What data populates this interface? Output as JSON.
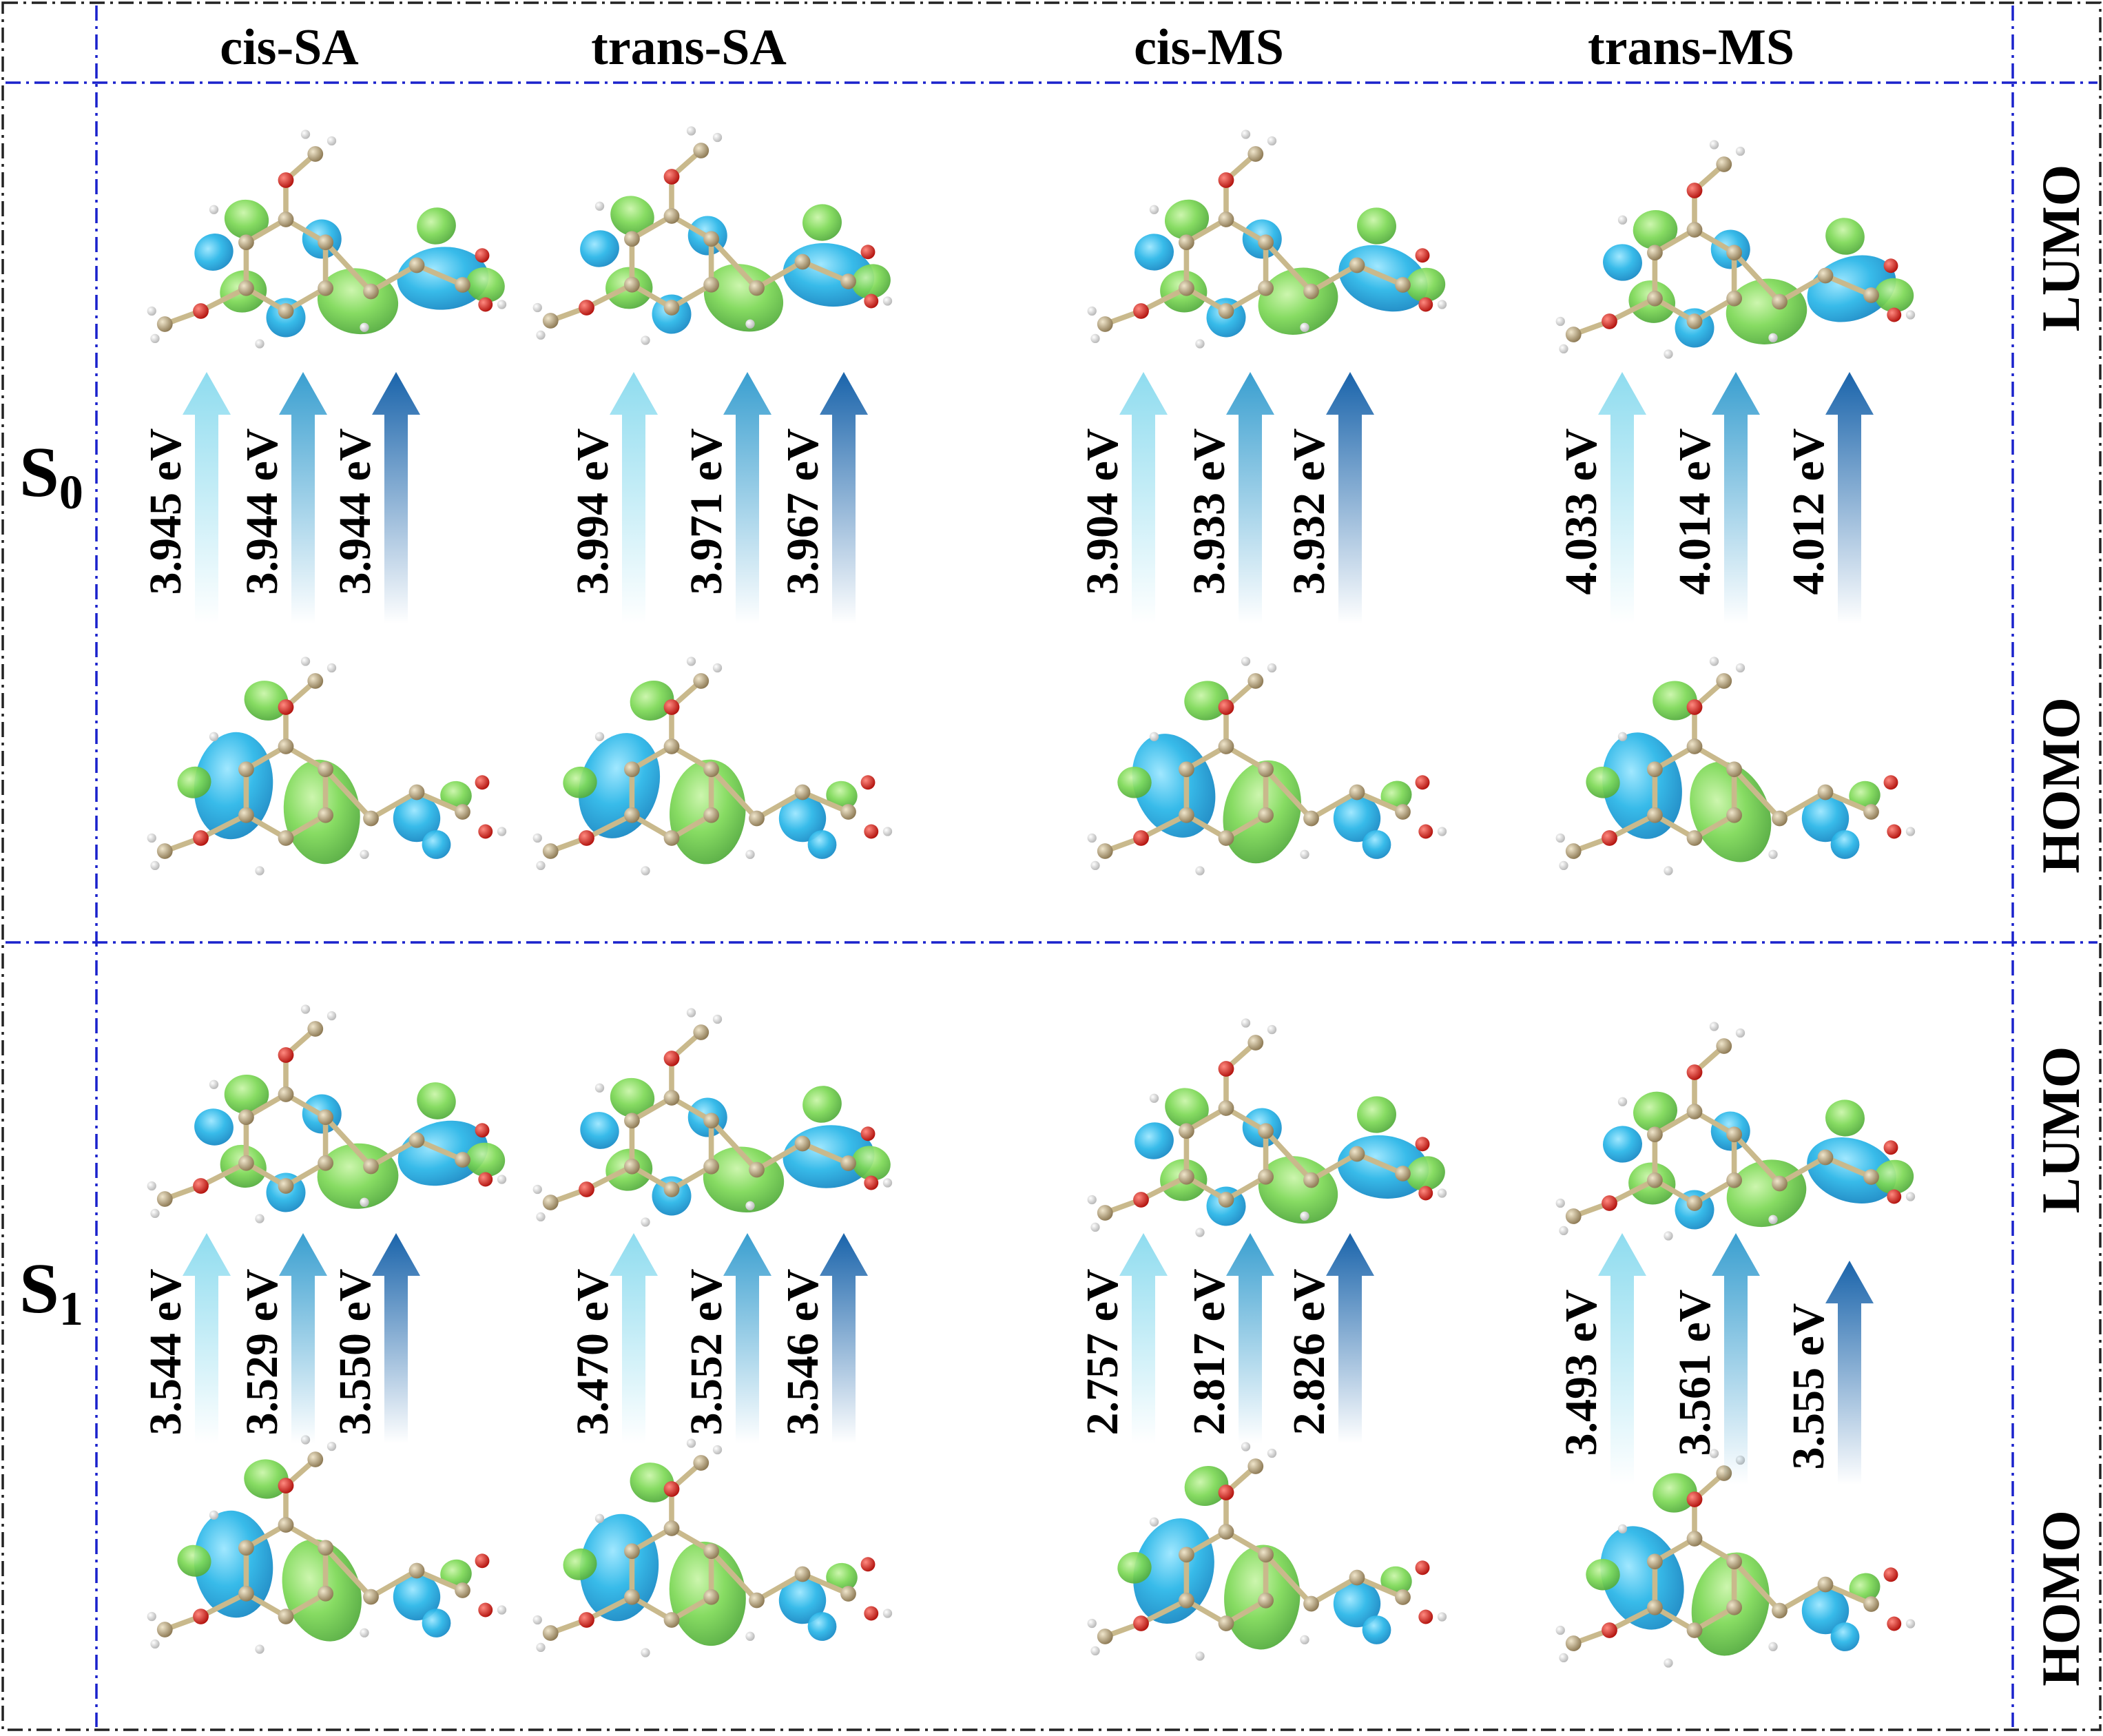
{
  "columns": [
    "cis-SA",
    "trans-SA",
    "cis-MS",
    "trans-MS"
  ],
  "rows": [
    {
      "state": "S",
      "state_sub": "0",
      "right_labels": [
        "LUMO",
        "HOMO"
      ],
      "energies": [
        [
          "3.945 eV",
          "3.944 eV",
          "3.944 eV"
        ],
        [
          "3.994 eV",
          "3.971 eV",
          "3.967 eV"
        ],
        [
          "3.904 eV",
          "3.933 eV",
          "3.932 eV"
        ],
        [
          "4.033 eV",
          "4.014 eV",
          "4.012 eV"
        ]
      ]
    },
    {
      "state": "S",
      "state_sub": "1",
      "right_labels": [
        "LUMO",
        "HOMO"
      ],
      "energies": [
        [
          "3.544 eV",
          "3.529 eV",
          "3.550 eV"
        ],
        [
          "3.470 eV",
          "3.552 eV",
          "3.546 eV"
        ],
        [
          "2.757 eV",
          "2.817 eV",
          "2.826 eV"
        ],
        [
          "3.493 eV",
          "3.561 eV",
          "3.555 eV"
        ]
      ]
    }
  ],
  "colors": {
    "outer_border": "#222222",
    "inner_grid": "#1a22cc",
    "lobe_blue": "#29b6e8",
    "lobe_green": "#7ed957",
    "arrow_light": "#8fdcef",
    "arrow_mid": "#3a9fd0",
    "arrow_dark": "#1a64ab",
    "carbon": "#b8a580",
    "oxygen": "#e0201a",
    "hydrogen": "#f2f2f2"
  },
  "icons": [
    "molecular-orbital-icon",
    "up-arrow-icon"
  ]
}
